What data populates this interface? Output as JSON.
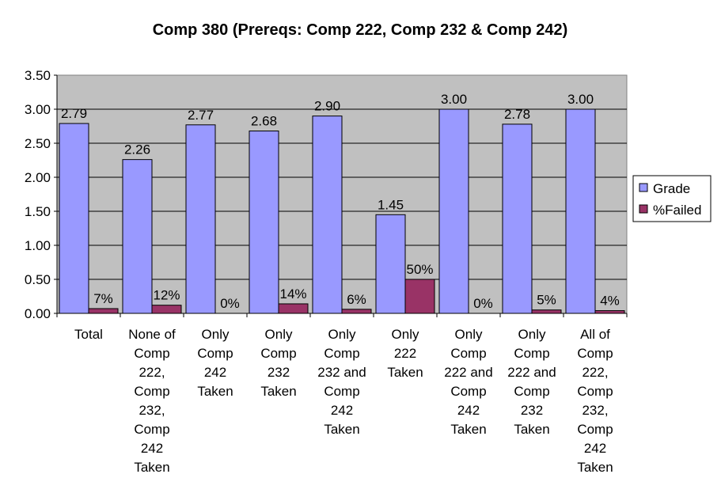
{
  "chart_data": {
    "type": "bar",
    "title": "Comp 380 (Prereqs: Comp 222, Comp 232 & Comp 242)",
    "categories": [
      [
        "Total"
      ],
      [
        "None of",
        "Comp",
        "222,",
        "Comp",
        "232,",
        "Comp",
        "242",
        "Taken"
      ],
      [
        "Only",
        "Comp",
        "242",
        "Taken"
      ],
      [
        "Only",
        "Comp",
        "232",
        "Taken"
      ],
      [
        "Only",
        "Comp",
        "232 and",
        "Comp",
        "242",
        "Taken"
      ],
      [
        "Only",
        "222",
        "Taken"
      ],
      [
        "Only",
        "Comp",
        "222 and",
        "Comp",
        "242",
        "Taken"
      ],
      [
        "Only",
        "Comp",
        "222 and",
        "Comp",
        "232",
        "Taken"
      ],
      [
        "All of",
        "Comp",
        "222,",
        "Comp",
        "232,",
        "Comp",
        "242",
        "Taken"
      ]
    ],
    "series": [
      {
        "name": "Grade",
        "color": "#9999ff",
        "values": [
          2.79,
          2.26,
          2.77,
          2.68,
          2.9,
          1.45,
          3.0,
          2.78,
          3.0
        ],
        "labels": [
          "2.79",
          "2.26",
          "2.77",
          "2.68",
          "2.90",
          "1.45",
          "3.00",
          "2.78",
          "3.00"
        ]
      },
      {
        "name": "%Failed",
        "color": "#993366",
        "values": [
          0.07,
          0.12,
          0.0,
          0.14,
          0.06,
          0.5,
          0.0,
          0.05,
          0.04
        ],
        "labels": [
          "7%",
          "12%",
          "0%",
          "14%",
          "6%",
          "50%",
          "0%",
          "5%",
          "4%"
        ]
      }
    ],
    "yticks": [
      "0.00",
      "0.50",
      "1.00",
      "1.50",
      "2.00",
      "2.50",
      "3.00",
      "3.50"
    ],
    "ylim": [
      0,
      3.5
    ],
    "plot_background": "#c0c0c0",
    "grid": true,
    "legend_position": "right"
  }
}
